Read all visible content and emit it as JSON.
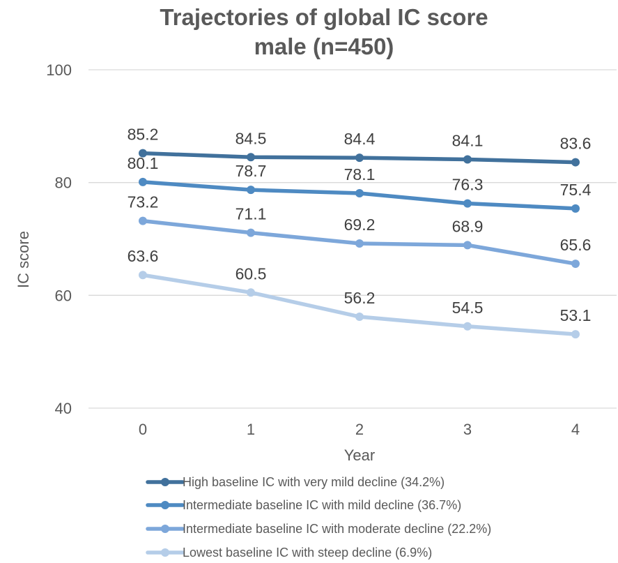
{
  "chart_data": {
    "type": "line",
    "title": "Trajectories of global IC score",
    "subtitle": "male (n=450)",
    "xlabel": "Year",
    "ylabel": "IC score",
    "categories": [
      "0",
      "1",
      "2",
      "3",
      "4"
    ],
    "ylim": [
      40,
      100
    ],
    "yticks": [
      40,
      60,
      80,
      100
    ],
    "grid": true,
    "legend_position": "bottom",
    "series": [
      {
        "name": "High baseline IC with very mild decline (34.2%)",
        "color": "#41719C",
        "values": [
          85.2,
          84.5,
          84.4,
          84.1,
          83.6
        ]
      },
      {
        "name": "Intermediate baseline IC with mild decline (36.7%)",
        "color": "#4E8AC2",
        "values": [
          80.1,
          78.7,
          78.1,
          76.3,
          75.4
        ]
      },
      {
        "name": "Intermediate baseline IC with moderate decline (22.2%)",
        "color": "#7DA7DA",
        "values": [
          73.2,
          71.1,
          69.2,
          68.9,
          65.6
        ]
      },
      {
        "name": "Lowest baseline IC with steep decline (6.9%)",
        "color": "#B5CDE8",
        "values": [
          63.6,
          60.5,
          56.2,
          54.5,
          53.1
        ]
      }
    ]
  }
}
